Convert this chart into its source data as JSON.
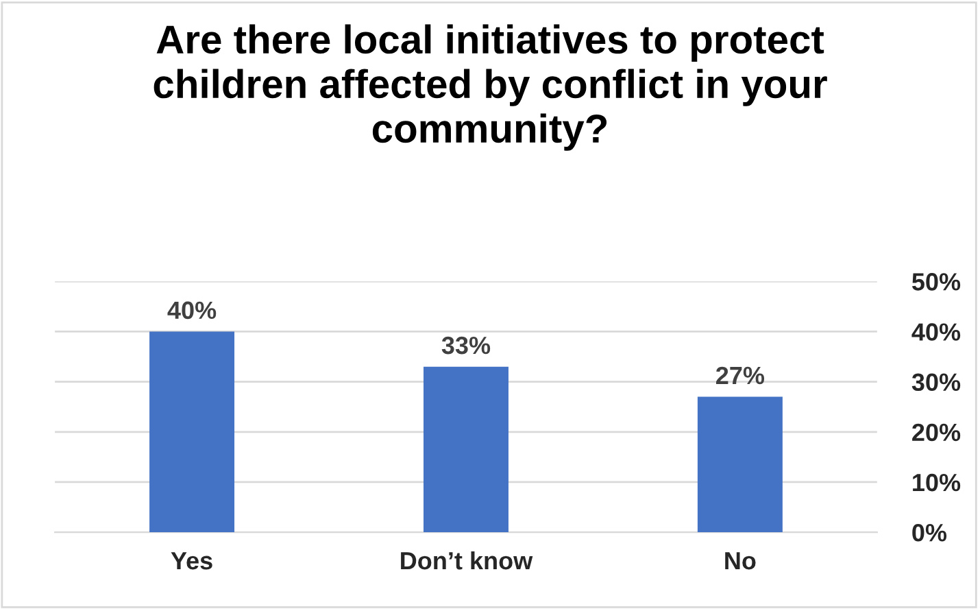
{
  "chart_data": {
    "type": "bar",
    "title": "Are there local initiatives to protect children affected by conflict in your community?",
    "categories": [
      "Yes",
      "Don’t know",
      "No"
    ],
    "values": [
      40,
      33,
      27
    ],
    "value_labels": [
      "40%",
      "33%",
      "27%"
    ],
    "color": "#4472c4",
    "ylim": [
      0,
      50
    ],
    "yticks": [
      {
        "value": 0,
        "label": "0%"
      },
      {
        "value": 10,
        "label": "10%"
      },
      {
        "value": 20,
        "label": "20%"
      },
      {
        "value": 30,
        "label": "30%"
      },
      {
        "value": 40,
        "label": "40%"
      },
      {
        "value": 50,
        "label": "50%"
      }
    ],
    "grid": "y",
    "legend": false
  }
}
